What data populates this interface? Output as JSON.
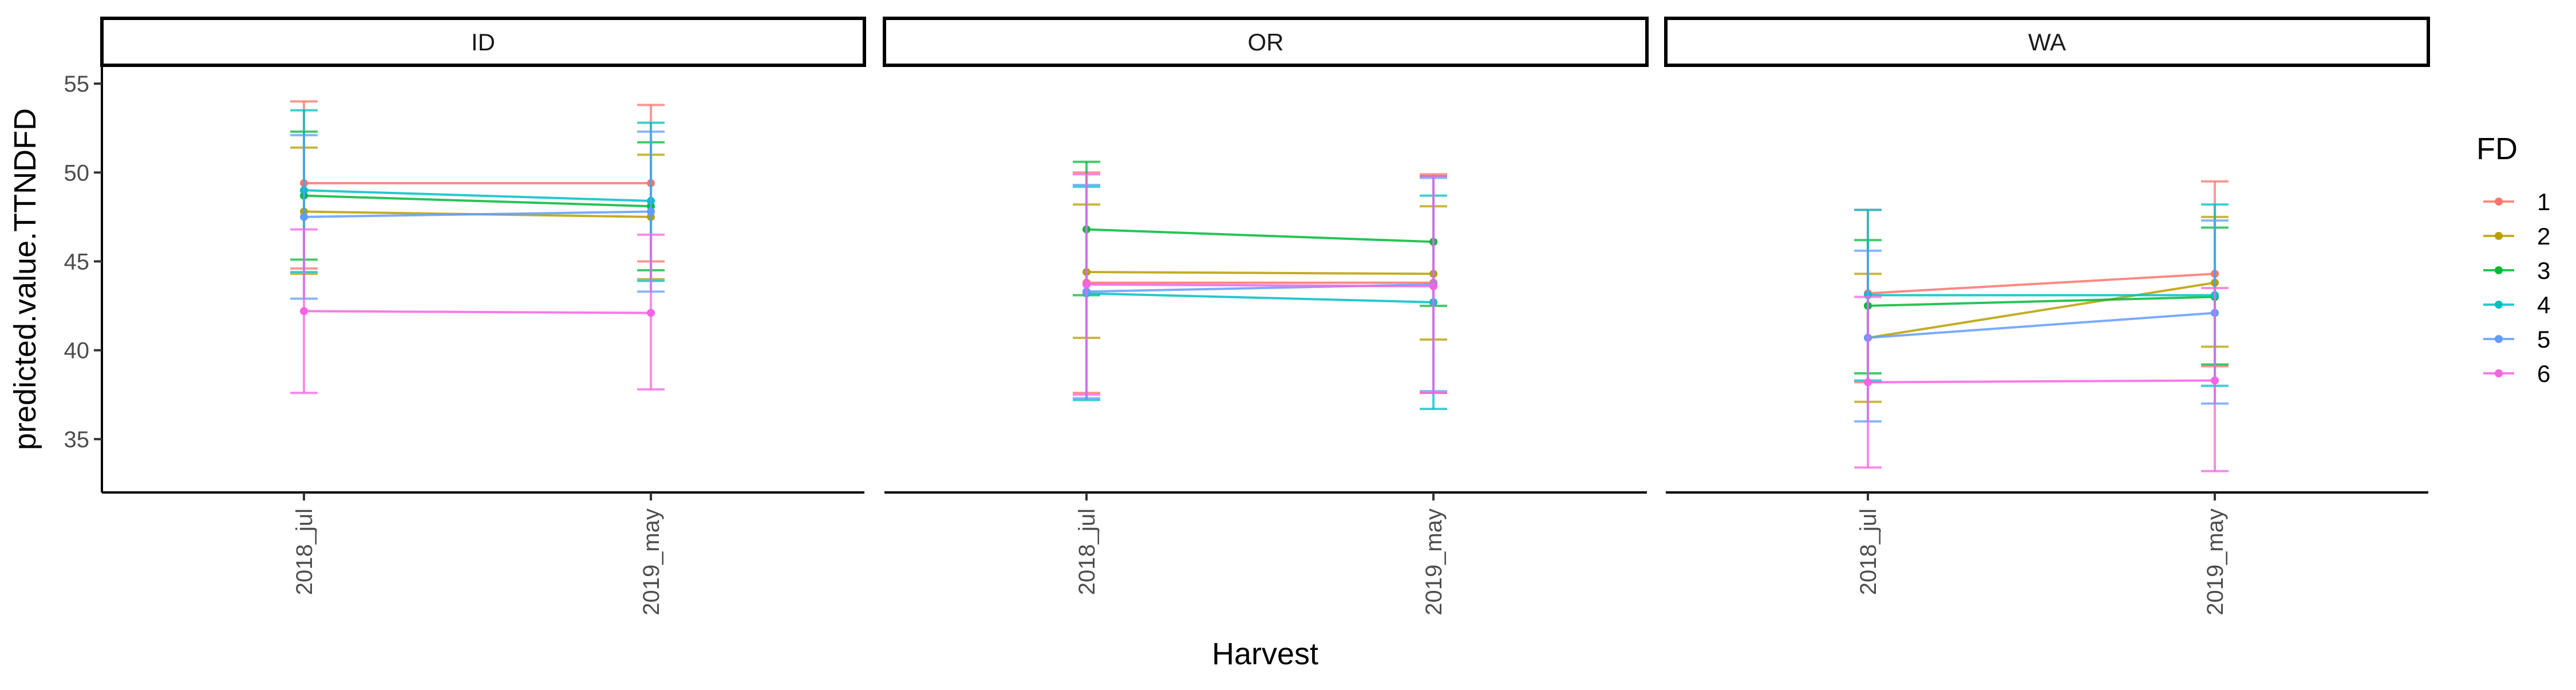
{
  "chart_data": {
    "type": "line",
    "facet_variable": "State",
    "facets": [
      "ID",
      "OR",
      "WA"
    ],
    "categories": [
      "2018_jul",
      "2019_may"
    ],
    "xlabel": "Harvest",
    "ylabel": "predicted.value.TTNDFD",
    "ylim": [
      32,
      56
    ],
    "yticks": [
      35,
      40,
      45,
      50,
      55
    ],
    "grid": false,
    "legend": {
      "title": "FD",
      "position": "right"
    },
    "series": [
      {
        "name": "1",
        "color": "#F8766D",
        "values": {
          "ID": [
            49.4,
            49.4
          ],
          "OR": [
            43.8,
            43.8
          ],
          "WA": [
            43.2,
            44.3
          ]
        },
        "ci": {
          "ID": [
            [
              44.6,
              54.0
            ],
            [
              45.0,
              53.8
            ]
          ],
          "OR": [
            [
              37.6,
              50.0
            ],
            [
              37.6,
              49.9
            ]
          ],
          "WA": [
            [
              38.2,
              47.9
            ],
            [
              39.1,
              49.5
            ]
          ]
        }
      },
      {
        "name": "2",
        "color": "#B79F00",
        "values": {
          "ID": [
            47.8,
            47.5
          ],
          "OR": [
            44.4,
            44.3
          ],
          "WA": [
            40.7,
            43.8
          ]
        },
        "ci": {
          "ID": [
            [
              44.3,
              51.4
            ],
            [
              44.0,
              51.0
            ]
          ],
          "OR": [
            [
              40.7,
              48.2
            ],
            [
              40.6,
              48.1
            ]
          ],
          "WA": [
            [
              37.1,
              44.3
            ],
            [
              40.2,
              47.5
            ]
          ]
        }
      },
      {
        "name": "3",
        "color": "#00BA38",
        "values": {
          "ID": [
            48.7,
            48.1
          ],
          "OR": [
            46.8,
            46.1
          ],
          "WA": [
            42.5,
            43.0
          ]
        },
        "ci": {
          "ID": [
            [
              45.1,
              52.3
            ],
            [
              44.5,
              51.7
            ]
          ],
          "OR": [
            [
              43.1,
              50.6
            ],
            [
              42.5,
              49.8
            ]
          ],
          "WA": [
            [
              38.7,
              46.2
            ],
            [
              39.2,
              46.9
            ]
          ]
        }
      },
      {
        "name": "4",
        "color": "#00BFC4",
        "values": {
          "ID": [
            49.0,
            48.4
          ],
          "OR": [
            43.2,
            42.7
          ],
          "WA": [
            43.1,
            43.1
          ]
        },
        "ci": {
          "ID": [
            [
              44.4,
              53.5
            ],
            [
              43.9,
              52.8
            ]
          ],
          "OR": [
            [
              37.2,
              49.2
            ],
            [
              36.7,
              48.7
            ]
          ],
          "WA": [
            [
              38.3,
              47.9
            ],
            [
              38.0,
              48.2
            ]
          ]
        }
      },
      {
        "name": "5",
        "color": "#619CFF",
        "values": {
          "ID": [
            47.5,
            47.8
          ],
          "OR": [
            43.3,
            43.7
          ],
          "WA": [
            40.7,
            42.1
          ]
        },
        "ci": {
          "ID": [
            [
              42.9,
              52.1
            ],
            [
              43.3,
              52.3
            ]
          ],
          "OR": [
            [
              37.3,
              49.3
            ],
            [
              37.7,
              49.7
            ]
          ],
          "WA": [
            [
              36.0,
              45.6
            ],
            [
              37.0,
              47.3
            ]
          ]
        }
      },
      {
        "name": "6",
        "color": "#F564E3",
        "values": {
          "ID": [
            42.2,
            42.1
          ],
          "OR": [
            43.7,
            43.6
          ],
          "WA": [
            38.2,
            38.3
          ]
        },
        "ci": {
          "ID": [
            [
              37.6,
              46.8
            ],
            [
              37.8,
              46.5
            ]
          ],
          "OR": [
            [
              37.5,
              49.9
            ],
            [
              37.6,
              49.8
            ]
          ],
          "WA": [
            [
              33.4,
              43.0
            ],
            [
              33.2,
              43.5
            ]
          ]
        }
      }
    ]
  }
}
